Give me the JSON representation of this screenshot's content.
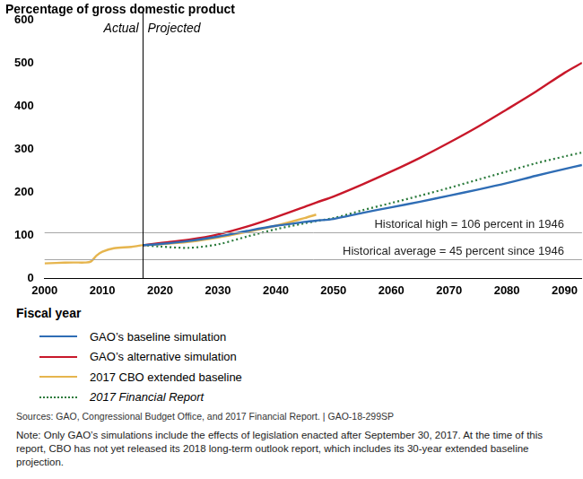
{
  "chart_data": {
    "type": "line",
    "y_axis_title": "Percentage of gross domestic product",
    "x_axis_title": "Fiscal year",
    "x": [
      2000,
      2002,
      2005,
      2007,
      2008,
      2009,
      2010,
      2012,
      2015,
      2017,
      2020,
      2025,
      2030,
      2035,
      2040,
      2045,
      2047,
      2050,
      2055,
      2060,
      2065,
      2070,
      2075,
      2080,
      2085,
      2090,
      2093
    ],
    "series": [
      {
        "name": "GAO’s baseline simulation",
        "color": "#2f6db5",
        "line_style": "solid",
        "values": [
          null,
          null,
          null,
          null,
          null,
          null,
          null,
          null,
          null,
          77,
          80,
          87,
          97,
          110,
          122,
          131,
          134,
          138,
          152,
          165,
          178,
          192,
          206,
          221,
          238,
          254,
          263
        ]
      },
      {
        "name": "GAO’s alternative simulation",
        "color": "#c8182a",
        "line_style": "solid",
        "values": [
          null,
          null,
          null,
          null,
          null,
          null,
          null,
          null,
          null,
          77,
          82,
          90,
          102,
          120,
          142,
          166,
          176,
          190,
          218,
          248,
          280,
          315,
          352,
          392,
          433,
          477,
          500
        ]
      },
      {
        "name": "2017 CBO extended baseline",
        "color": "#e6b54e",
        "line_style": "solid",
        "values": [
          35,
          36,
          37,
          37,
          39,
          53,
          62,
          70,
          73,
          77,
          79,
          85,
          95,
          108,
          122,
          140,
          148,
          null,
          null,
          null,
          null,
          null,
          null,
          null,
          null,
          null,
          null
        ]
      },
      {
        "name": "2017 Financial Report",
        "color": "#2a7a3b",
        "line_style": "dotted",
        "values": [
          null,
          null,
          null,
          null,
          null,
          null,
          null,
          null,
          null,
          77,
          74,
          71,
          79,
          97,
          114,
          128,
          133,
          140,
          158,
          175,
          192,
          210,
          229,
          248,
          267,
          283,
          292
        ]
      }
    ],
    "xlim": [
      2000,
      2093
    ],
    "xticks": [
      2000,
      2010,
      2020,
      2030,
      2040,
      2050,
      2060,
      2070,
      2080,
      2090
    ],
    "ylim": [
      0,
      600
    ],
    "yticks": [
      0,
      100,
      200,
      300,
      400,
      500,
      600
    ],
    "grid": false,
    "legend": "bottom",
    "divider": {
      "value": 2017,
      "left_label": "Actual",
      "right_label": "Projected"
    },
    "reference_lines": [
      {
        "value": 106,
        "text": "Historical high = 106 percent in 1946"
      },
      {
        "value": 45,
        "text": "Historical average = 45 percent since 1946"
      }
    ],
    "sources": "Sources: GAO, Congressional Budget Office, and 2017 Financial Report.  |  GAO-18-299SP",
    "note": "Note: Only GAO’s simulations include the effects of legislation enacted after September 30, 2017. At the time of this report, CBO has not yet released its 2018 long-term outlook report, which includes its 30-year extended baseline projection."
  }
}
